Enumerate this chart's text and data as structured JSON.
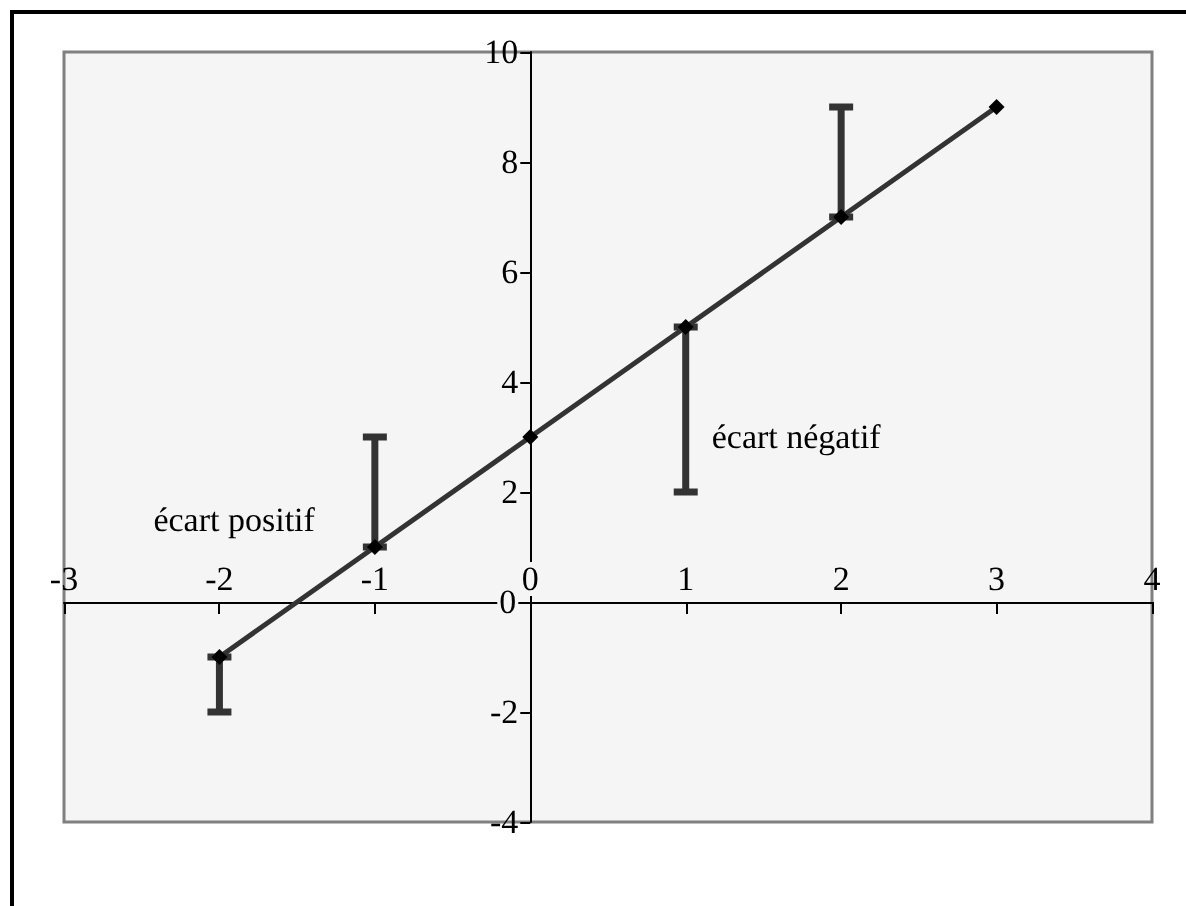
{
  "chart_data": {
    "type": "line",
    "x": [
      -2,
      -1,
      0,
      1,
      2,
      3
    ],
    "values": [
      -1,
      1,
      3,
      5,
      7,
      9
    ],
    "errors": [
      [
        -2,
        -1
      ],
      [
        1,
        3
      ],
      null,
      [
        2,
        5
      ],
      [
        7,
        9
      ],
      null
    ],
    "color": "#333333",
    "marker": "diamond",
    "line_style": "solid",
    "grid": false,
    "xlim": [
      -3,
      4
    ],
    "xticks": [
      -3,
      -2,
      -1,
      0,
      1,
      2,
      3,
      4
    ],
    "ylim": [
      -4,
      10
    ],
    "yticks": [
      -4,
      -2,
      0,
      2,
      4,
      6,
      8,
      10
    ],
    "annotations": [
      {
        "text": "écart positif",
        "x": -1,
        "y": 1.5
      },
      {
        "text": "écart négatif",
        "x": 1,
        "y": 3
      }
    ]
  }
}
